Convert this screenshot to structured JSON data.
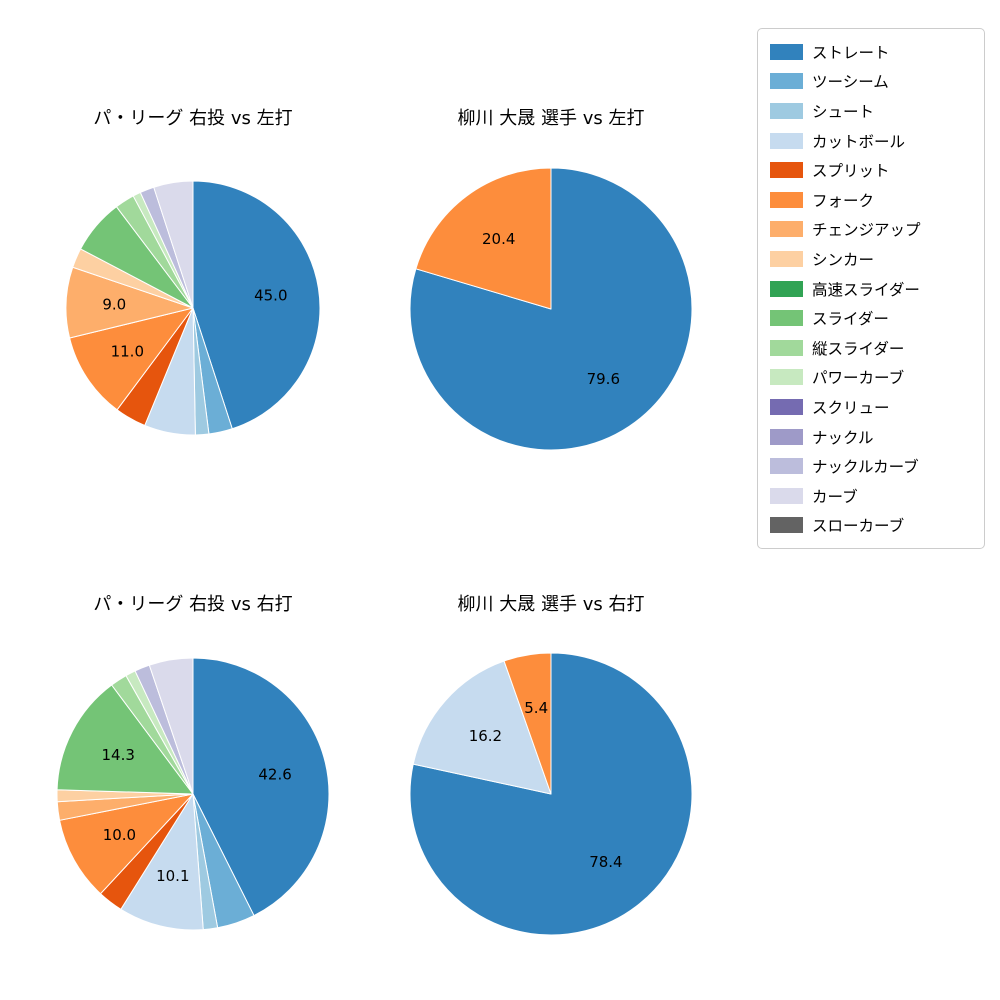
{
  "page": {
    "background": "#ffffff"
  },
  "legend": {
    "items": [
      {
        "label": "ストレート",
        "color": "#3182bd"
      },
      {
        "label": "ツーシーム",
        "color": "#6baed6"
      },
      {
        "label": "シュート",
        "color": "#9ecae1"
      },
      {
        "label": "カットボール",
        "color": "#c6dbef"
      },
      {
        "label": "スプリット",
        "color": "#e6550d"
      },
      {
        "label": "フォーク",
        "color": "#fd8d3c"
      },
      {
        "label": "チェンジアップ",
        "color": "#fdae6b"
      },
      {
        "label": "シンカー",
        "color": "#fdd0a2"
      },
      {
        "label": "高速スライダー",
        "color": "#31a354"
      },
      {
        "label": "スライダー",
        "color": "#74c476"
      },
      {
        "label": "縦スライダー",
        "color": "#a1d99b"
      },
      {
        "label": "パワーカーブ",
        "color": "#c7e9c0"
      },
      {
        "label": "スクリュー",
        "color": "#756bb1"
      },
      {
        "label": "ナックル",
        "color": "#9e9ac8"
      },
      {
        "label": "ナックルカーブ",
        "color": "#bcbddc"
      },
      {
        "label": "カーブ",
        "color": "#dadaeb"
      },
      {
        "label": "スローカーブ",
        "color": "#636363"
      }
    ]
  },
  "chart_data": [
    {
      "type": "pie",
      "title": "パ・リーグ 右投 vs 左打",
      "start": "top",
      "direction": "clockwise",
      "label_radius_fraction": 0.62,
      "slices": [
        {
          "name": "ストレート",
          "value": 45.0,
          "label": "45.0"
        },
        {
          "name": "ツーシーム",
          "value": 3.0,
          "label": ""
        },
        {
          "name": "シュート",
          "value": 1.7,
          "label": ""
        },
        {
          "name": "カットボール",
          "value": 6.5,
          "label": ""
        },
        {
          "name": "スプリット",
          "value": 4.0,
          "label": ""
        },
        {
          "name": "フォーク",
          "value": 11.0,
          "label": "11.0"
        },
        {
          "name": "チェンジアップ",
          "value": 9.0,
          "label": "9.0"
        },
        {
          "name": "シンカー",
          "value": 2.5,
          "label": ""
        },
        {
          "name": "スライダー",
          "value": 7.0,
          "label": ""
        },
        {
          "name": "縦スライダー",
          "value": 2.5,
          "label": ""
        },
        {
          "name": "パワーカーブ",
          "value": 1.0,
          "label": ""
        },
        {
          "name": "ナックルカーブ",
          "value": 1.8,
          "label": ""
        },
        {
          "name": "カーブ",
          "value": 5.0,
          "label": ""
        }
      ]
    },
    {
      "type": "pie",
      "title": "柳川 大晟 選手 vs 左打",
      "start": "top",
      "direction": "clockwise",
      "label_radius_fraction": 0.62,
      "slices": [
        {
          "name": "ストレート",
          "value": 79.6,
          "label": "79.6"
        },
        {
          "name": "フォーク",
          "value": 20.4,
          "label": "20.4"
        }
      ]
    },
    {
      "type": "pie",
      "title": "パ・リーグ 右投 vs 右打",
      "start": "top",
      "direction": "clockwise",
      "label_radius_fraction": 0.62,
      "slices": [
        {
          "name": "ストレート",
          "value": 42.6,
          "label": "42.6"
        },
        {
          "name": "ツーシーム",
          "value": 4.5,
          "label": ""
        },
        {
          "name": "シュート",
          "value": 1.7,
          "label": ""
        },
        {
          "name": "カットボール",
          "value": 10.1,
          "label": "10.1"
        },
        {
          "name": "スプリット",
          "value": 3.0,
          "label": ""
        },
        {
          "name": "フォーク",
          "value": 10.0,
          "label": "10.0"
        },
        {
          "name": "チェンジアップ",
          "value": 2.2,
          "label": ""
        },
        {
          "name": "シンカー",
          "value": 1.4,
          "label": ""
        },
        {
          "name": "スライダー",
          "value": 14.3,
          "label": "14.3"
        },
        {
          "name": "縦スライダー",
          "value": 2.0,
          "label": ""
        },
        {
          "name": "パワーカーブ",
          "value": 1.2,
          "label": ""
        },
        {
          "name": "ナックルカーブ",
          "value": 1.8,
          "label": ""
        },
        {
          "name": "カーブ",
          "value": 5.2,
          "label": ""
        }
      ]
    },
    {
      "type": "pie",
      "title": "柳川 大晟 選手 vs 右打",
      "start": "top",
      "direction": "clockwise",
      "label_radius_fraction": 0.62,
      "slices": [
        {
          "name": "ストレート",
          "value": 78.4,
          "label": "78.4"
        },
        {
          "name": "カットボール",
          "value": 16.2,
          "label": "16.2"
        },
        {
          "name": "フォーク",
          "value": 5.4,
          "label": "5.4"
        }
      ]
    }
  ]
}
